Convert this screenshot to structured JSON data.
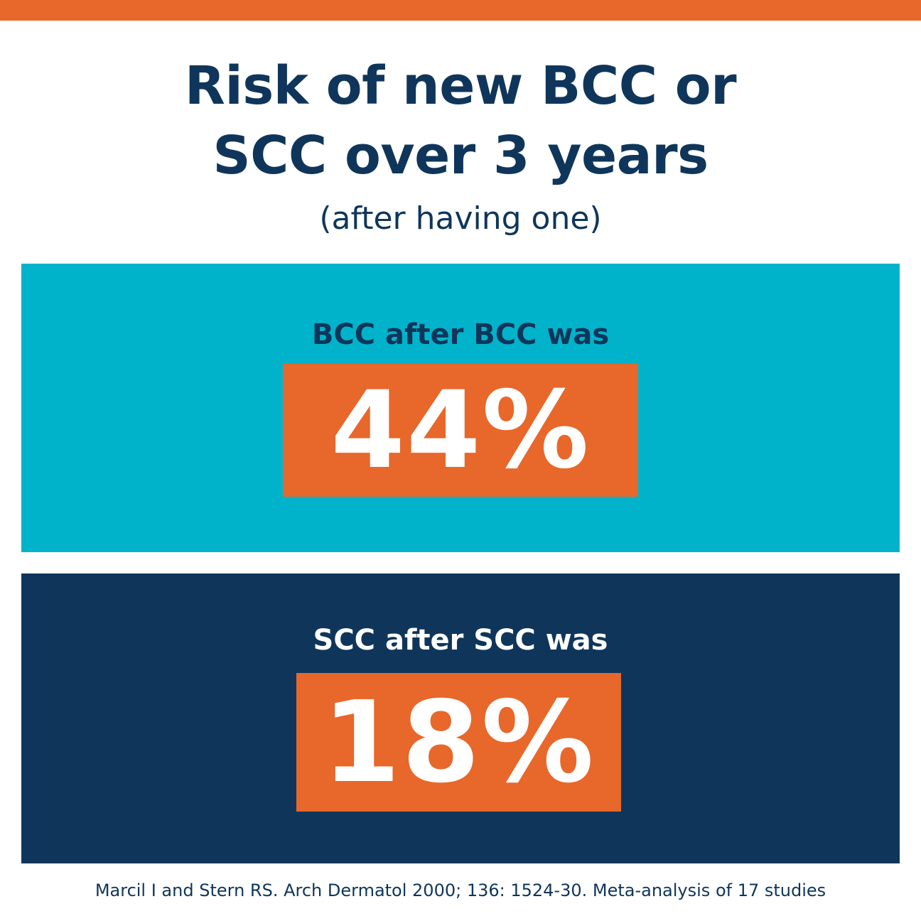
{
  "colors": {
    "accent": "#e8672a",
    "navy": "#0f365a",
    "teal": "#00b3cb",
    "background": "#ffffff"
  },
  "header": {
    "title_line1": "Risk of new BCC or",
    "title_line2": "SCC over 3 years",
    "subtitle": "(after having one)"
  },
  "stats": [
    {
      "label": "BCC after BCC was",
      "value": "44%"
    },
    {
      "label": "SCC after SCC was",
      "value": "18%"
    }
  ],
  "footer": {
    "citation": "Marcil I and Stern RS. Arch Dermatol 2000; 136: 1524-30. Meta-analysis of 17 studies"
  }
}
